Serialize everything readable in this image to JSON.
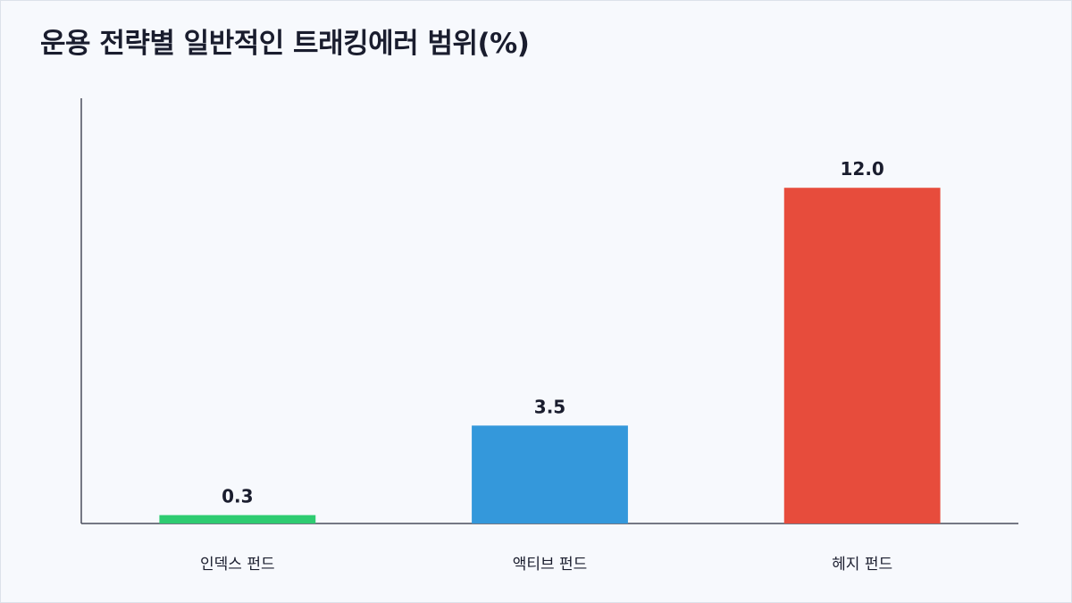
{
  "chart_data": {
    "type": "bar",
    "title": "운용 전략별 일반적인 트래킹에러 범위(%)",
    "xlabel": "",
    "ylabel": "",
    "categories": [
      "인덱스 펀드",
      "액티브 펀드",
      "헤지 펀드"
    ],
    "values": [
      0.3,
      3.5,
      12.0
    ],
    "value_labels": [
      "0.3",
      "3.5",
      "12.0"
    ],
    "colors": [
      "#2ecc71",
      "#3498db",
      "#e74c3c"
    ],
    "ylim": [
      0,
      15.2
    ],
    "grid": false,
    "legend": "none"
  }
}
